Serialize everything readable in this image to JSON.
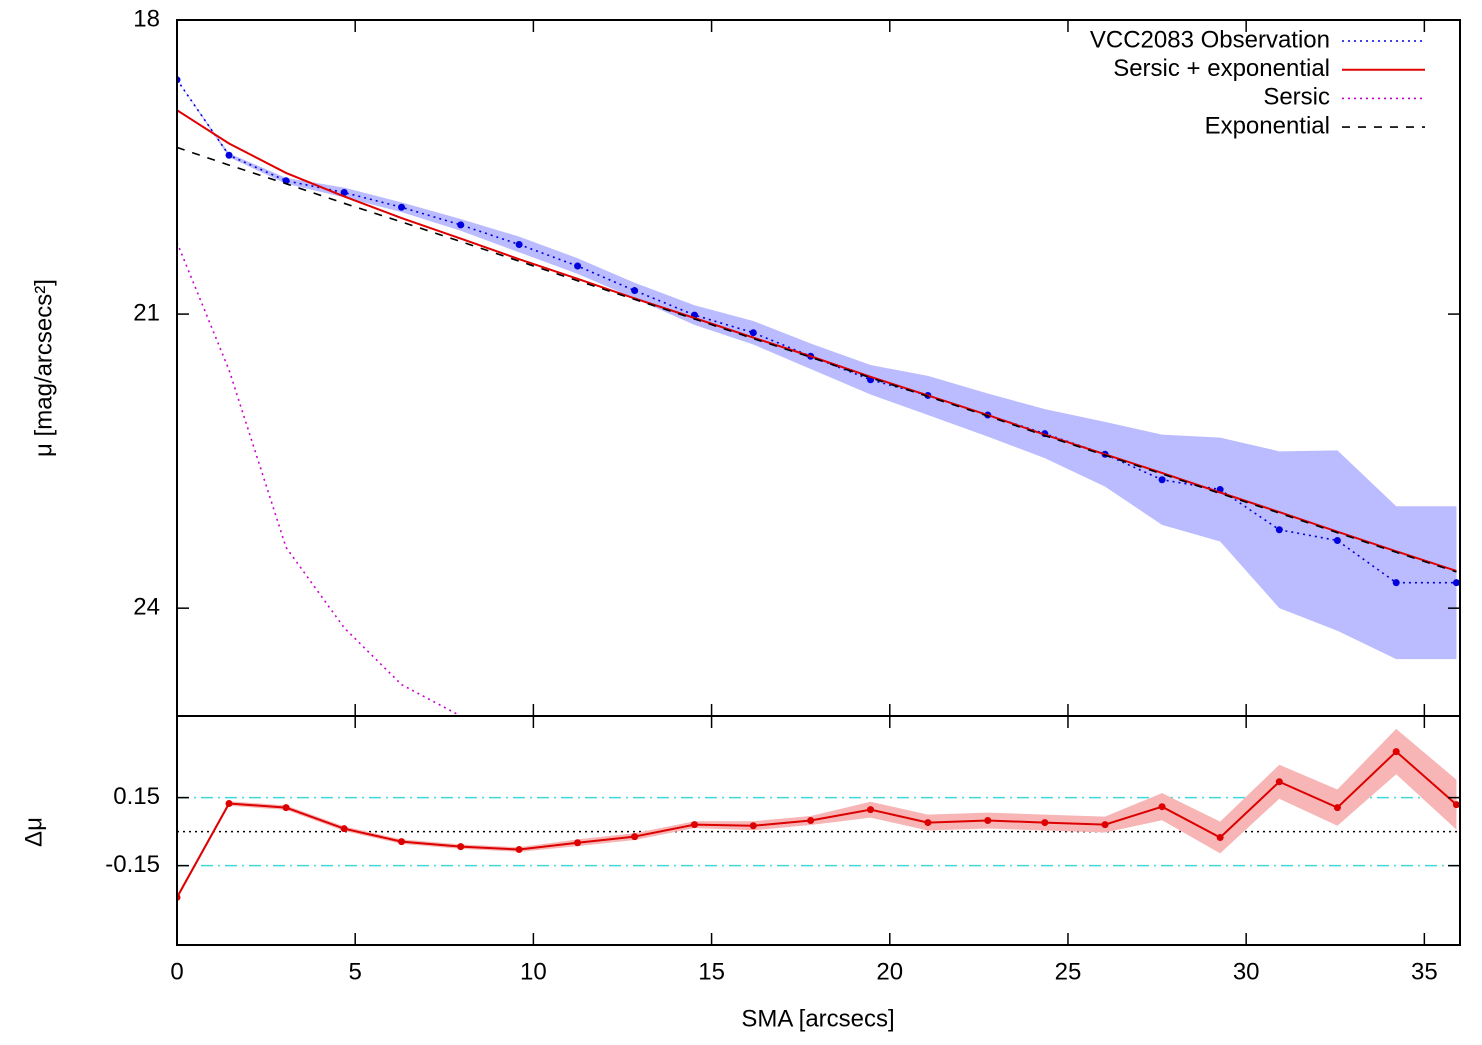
{
  "chart_data": [
    {
      "type": "line",
      "ylabel": "μ [mag/arcsecs²]",
      "x": [
        0,
        1.46,
        3.06,
        4.69,
        6.3,
        7.96,
        9.6,
        11.24,
        12.84,
        14.52,
        16.17,
        17.78,
        19.46,
        21.07,
        22.75,
        24.35,
        26.04,
        27.64,
        29.27,
        30.93,
        32.56,
        34.21,
        35.9
      ],
      "xlim": [
        0,
        36
      ],
      "xticks": [
        0,
        5,
        10,
        15,
        20,
        25,
        30,
        35
      ],
      "ylim": [
        18,
        25.1
      ],
      "y_inverted": true,
      "yticks": [
        18,
        21,
        24
      ],
      "legend": "top-right",
      "series": [
        {
          "name": "VCC2083 Observation",
          "color": "#0000dd",
          "style": "dotted",
          "markers": true,
          "band_color": "#bbbbff",
          "values": [
            18.61,
            19.38,
            19.64,
            19.76,
            19.91,
            20.09,
            20.29,
            20.51,
            20.76,
            21.01,
            21.19,
            21.43,
            21.67,
            21.83,
            22.03,
            22.22,
            22.43,
            22.69,
            22.79,
            23.2,
            23.31,
            23.74,
            23.74
          ],
          "errors": [
            0,
            0.02,
            0.03,
            0.05,
            0.05,
            0.06,
            0.08,
            0.08,
            0.08,
            0.1,
            0.12,
            0.13,
            0.15,
            0.2,
            0.22,
            0.25,
            0.33,
            0.46,
            0.53,
            0.8,
            0.92,
            0.78,
            0.78
          ]
        },
        {
          "name": "Sersic + exponential",
          "color": "#e00000",
          "style": "solid",
          "values": [
            18.92,
            19.26,
            19.56,
            19.8,
            20.02,
            20.23,
            20.44,
            20.64,
            20.84,
            21.04,
            21.24,
            21.43,
            21.64,
            21.83,
            22.03,
            22.23,
            22.43,
            22.62,
            22.82,
            23.02,
            23.22,
            23.42,
            23.62
          ]
        },
        {
          "name": "Sersic",
          "color": "#cc00cc",
          "style": "dotted",
          "values": [
            20.27,
            21.57,
            23.38,
            24.2,
            24.78,
            25.1,
            null,
            null,
            null,
            null,
            null,
            null,
            null,
            null,
            null,
            null,
            null,
            null,
            null,
            null,
            null,
            null,
            null
          ]
        },
        {
          "name": "Exponential",
          "color": "#000000",
          "style": "dashed",
          "values": [
            19.3,
            19.48,
            19.67,
            19.87,
            20.06,
            20.26,
            20.46,
            20.66,
            20.85,
            21.05,
            21.25,
            21.44,
            21.65,
            21.84,
            22.04,
            22.24,
            22.44,
            22.63,
            22.83,
            23.03,
            23.23,
            23.43,
            23.63
          ]
        }
      ]
    },
    {
      "type": "line",
      "ylabel": "Δμ",
      "xlabel": "SMA [arcsecs]",
      "x": [
        0,
        1.46,
        3.06,
        4.69,
        6.3,
        7.96,
        9.6,
        11.24,
        12.84,
        14.52,
        16.17,
        17.78,
        19.46,
        21.07,
        22.75,
        24.35,
        26.04,
        27.64,
        29.27,
        30.93,
        32.56,
        34.21,
        35.9
      ],
      "xlim": [
        0,
        36
      ],
      "xticks": [
        0,
        5,
        10,
        15,
        20,
        25,
        30,
        35
      ],
      "ylim": [
        -0.5,
        0.51
      ],
      "yticks": [
        0.15,
        -0.15
      ],
      "hlines": [
        {
          "value": 0.15,
          "color": "#40d8d8",
          "style": "dashdot"
        },
        {
          "value": 0,
          "color": "#000000",
          "style": "dotted"
        },
        {
          "value": -0.15,
          "color": "#40d8d8",
          "style": "dashdot"
        }
      ],
      "series": [
        {
          "color": "#dd0000",
          "style": "solid",
          "markers": true,
          "band_color": "#f7b5b5",
          "values": [
            -0.29,
            0.124,
            0.106,
            0.013,
            -0.044,
            -0.066,
            -0.079,
            -0.049,
            -0.022,
            0.031,
            0.026,
            0.049,
            0.097,
            0.04,
            0.049,
            0.04,
            0.031,
            0.11,
            -0.026,
            0.22,
            0.106,
            0.353,
            0.119
          ],
          "errors": [
            0.01,
            0.01,
            0.01,
            0.01,
            0.01,
            0.01,
            0.01,
            0.015,
            0.015,
            0.015,
            0.02,
            0.02,
            0.035,
            0.035,
            0.035,
            0.035,
            0.035,
            0.06,
            0.07,
            0.075,
            0.08,
            0.1,
            0.11
          ]
        }
      ]
    }
  ]
}
